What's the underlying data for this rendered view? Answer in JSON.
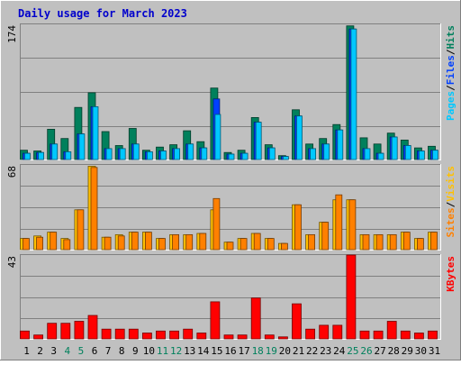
{
  "title": "Daily usage for March 2023",
  "colors": {
    "background": "#c0c0c0",
    "title": "#0000cc",
    "hits": "#00805c",
    "files": "#0040ff",
    "pages": "#00c8ff",
    "visits": "#ffc000",
    "sites": "#ff8000",
    "kbytes": "#ff0000",
    "weekend_label": "#00805c",
    "weekday_label": "#000000"
  },
  "chart_data": [
    {
      "type": "bar",
      "panel": "hits-files-pages",
      "y_max_label": "174",
      "ylim": [
        0,
        174
      ],
      "grid": true,
      "legend": [
        "Pages",
        "/",
        "Files",
        "/",
        "Hits"
      ],
      "categories": [
        "1",
        "2",
        "3",
        "4",
        "5",
        "6",
        "7",
        "8",
        "9",
        "10",
        "11",
        "12",
        "13",
        "14",
        "15",
        "16",
        "17",
        "18",
        "19",
        "20",
        "21",
        "22",
        "23",
        "24",
        "25",
        "26",
        "27",
        "28",
        "29",
        "30",
        "31"
      ],
      "series": [
        {
          "name": "Hits",
          "values": [
            12,
            11,
            39,
            27,
            67,
            86,
            36,
            18,
            40,
            12,
            16,
            19,
            37,
            23,
            92,
            9,
            12,
            54,
            19,
            5,
            64,
            20,
            27,
            45,
            172,
            28,
            20,
            34,
            25,
            15,
            17
          ]
        },
        {
          "name": "Files",
          "values": [
            8,
            9,
            20,
            10,
            33,
            68,
            14,
            14,
            20,
            10,
            11,
            14,
            20,
            15,
            78,
            7,
            8,
            48,
            15,
            4,
            56,
            14,
            20,
            38,
            168,
            14,
            8,
            29,
            18,
            11,
            12
          ]
        },
        {
          "name": "Pages",
          "values": [
            8,
            9,
            20,
            10,
            33,
            68,
            14,
            14,
            20,
            10,
            11,
            14,
            20,
            15,
            58,
            7,
            8,
            48,
            15,
            4,
            56,
            14,
            20,
            38,
            168,
            14,
            8,
            29,
            18,
            11,
            12
          ]
        }
      ]
    },
    {
      "type": "bar",
      "panel": "visits-sites",
      "y_max_label": "68",
      "ylim": [
        0,
        68
      ],
      "grid": true,
      "legend": [
        "Sites",
        "/",
        "Visits"
      ],
      "categories": [
        "1",
        "2",
        "3",
        "4",
        "5",
        "6",
        "7",
        "8",
        "9",
        "10",
        "11",
        "12",
        "13",
        "14",
        "15",
        "16",
        "17",
        "18",
        "19",
        "20",
        "21",
        "22",
        "23",
        "24",
        "25",
        "26",
        "27",
        "28",
        "29",
        "30",
        "31"
      ],
      "series": [
        {
          "name": "Visits",
          "values": [
            9,
            11,
            14,
            9,
            32,
            67,
            10,
            12,
            14,
            14,
            9,
            12,
            12,
            13,
            32,
            6,
            9,
            13,
            9,
            5,
            36,
            12,
            22,
            40,
            40,
            12,
            12,
            12,
            14,
            9,
            14
          ]
        },
        {
          "name": "Sites",
          "values": [
            9,
            10,
            14,
            8,
            32,
            66,
            10,
            11,
            14,
            14,
            9,
            12,
            12,
            13,
            41,
            6,
            9,
            13,
            9,
            5,
            36,
            12,
            22,
            44,
            40,
            12,
            12,
            12,
            14,
            9,
            14
          ]
        }
      ]
    },
    {
      "type": "bar",
      "panel": "kbytes",
      "y_max_label": "43",
      "ylim": [
        0,
        43
      ],
      "grid": true,
      "legend": [
        "KBytes"
      ],
      "categories": [
        "1",
        "2",
        "3",
        "4",
        "5",
        "6",
        "7",
        "8",
        "9",
        "10",
        "11",
        "12",
        "13",
        "14",
        "15",
        "16",
        "17",
        "18",
        "19",
        "20",
        "21",
        "22",
        "23",
        "24",
        "25",
        "26",
        "27",
        "28",
        "29",
        "30",
        "31"
      ],
      "series": [
        {
          "name": "KBytes",
          "values": [
            4,
            2,
            8,
            8,
            9,
            12,
            5,
            5,
            5,
            3,
            4,
            4,
            5,
            3,
            19,
            2,
            2,
            21,
            2,
            1,
            18,
            5,
            7,
            7,
            43,
            4,
            4,
            9,
            4,
            3,
            4
          ]
        }
      ]
    }
  ]
}
